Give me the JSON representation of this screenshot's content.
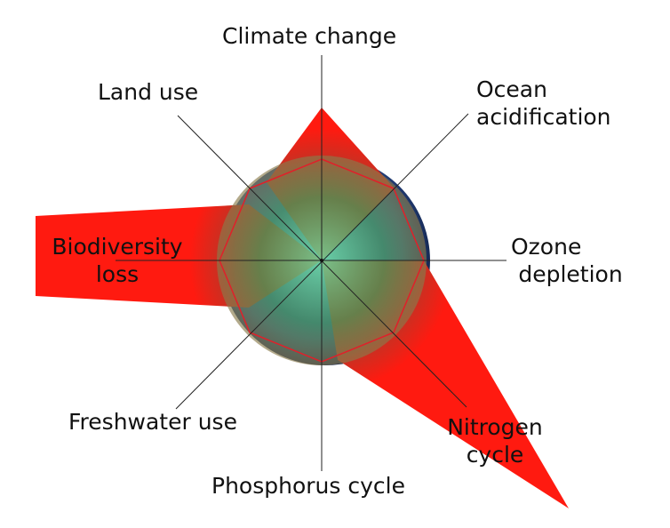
{
  "labels": {
    "climate_change": "Climate change",
    "land_use": "Land use",
    "ocean_acidification_1": "Ocean",
    "ocean_acidification_2": "acidification",
    "ozone_depletion_1": "Ozone",
    "ozone_depletion_2": "depletion",
    "biodiversity_loss_1": "Biodiversity",
    "biodiversity_loss_2": "loss",
    "freshwater_use": "Freshwater use",
    "phosphorus_cycle": "Phosphorus cycle",
    "nitrogen_cycle_1": "Nitrogen",
    "nitrogen_cycle_2": "cycle"
  },
  "colors": {
    "exceeded": "#ff1a10",
    "safe_zone": "#3fbf6a",
    "boundary_outline": "#e0202a",
    "axes": "#222222"
  }
}
